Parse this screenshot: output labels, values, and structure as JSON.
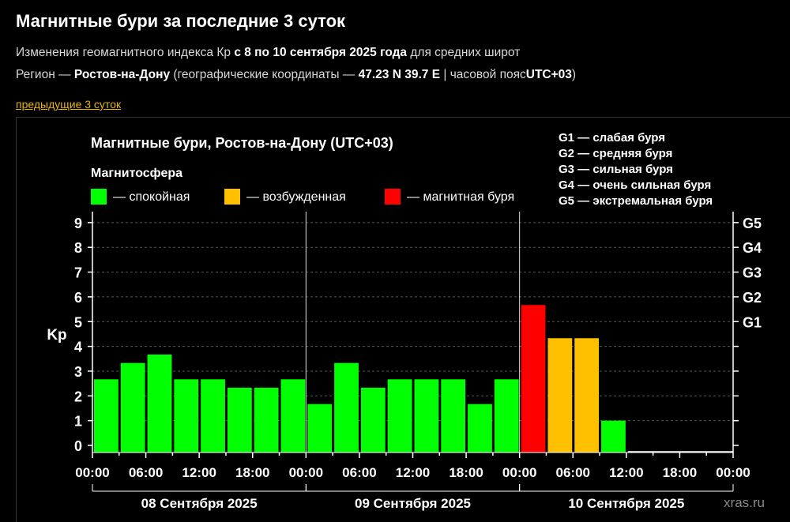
{
  "header": {
    "title": "Магнитные бури за последние 3 суток",
    "subtitle_prefix": "Изменения геомагнитного индекса Кр",
    "subtitle_dates": "с 8 по 10 сентября 2025 года",
    "subtitle_suffix": "для средних широт",
    "region_prefix": "Регион —",
    "region_name": "Ростов-на-Дону",
    "region_coords_prefix": "(географические координаты —",
    "region_coords": "47.23 N 39.7 E",
    "region_tz_prefix": "| часовой пояс",
    "region_tz": "UTC+03",
    "region_close": ")",
    "prev_link": "предыдущие 3 суток"
  },
  "legend": {
    "title": "Магнитосфера",
    "items": [
      {
        "label": "— спокойная",
        "color": "#00ff00"
      },
      {
        "label": "— возбужденная",
        "color": "#ffc000"
      },
      {
        "label": "— магнитная буря",
        "color": "#ff0000"
      }
    ],
    "g_scale": [
      "G1 — слабая буря",
      "G2 — средняя буря",
      "G3 — сильная буря",
      "G4 — очень сильная буря",
      "G5 — экстремальная буря"
    ]
  },
  "watermark": "xras.ru",
  "chart_data": {
    "type": "bar",
    "title": "Магнитные бури, Ростов-на-Дону (UTC+03)",
    "ylabel": "Kp",
    "ylim": [
      0,
      9
    ],
    "yticks": [
      0,
      1,
      2,
      3,
      4,
      5,
      6,
      7,
      8,
      9
    ],
    "right_ticks": [
      {
        "value": 5,
        "label": "G1"
      },
      {
        "value": 6,
        "label": "G2"
      },
      {
        "value": 7,
        "label": "G3"
      },
      {
        "value": 8,
        "label": "G4"
      },
      {
        "value": 9,
        "label": "G5"
      }
    ],
    "grid": "dashed",
    "slots_per_day": 8,
    "x_tick_labels": [
      "00:00",
      "06:00",
      "12:00",
      "18:00",
      "00:00",
      "06:00",
      "12:00",
      "18:00",
      "00:00",
      "06:00",
      "12:00",
      "18:00",
      "00:00"
    ],
    "days": [
      "08 Сентября 2025",
      "09 Сентября 2025",
      "10 Сентября 2025"
    ],
    "values": [
      2.67,
      3.33,
      3.67,
      2.67,
      2.67,
      2.33,
      2.33,
      2.67,
      1.67,
      3.33,
      2.33,
      2.67,
      2.67,
      2.67,
      1.67,
      2.67,
      5.67,
      4.33,
      4.33,
      1.0,
      null,
      null,
      null,
      null
    ],
    "colors": {
      "quiet": "#00ff00",
      "active": "#ffc000",
      "storm": "#ff0000"
    },
    "thresholds": {
      "active": 4,
      "storm": 5
    }
  }
}
